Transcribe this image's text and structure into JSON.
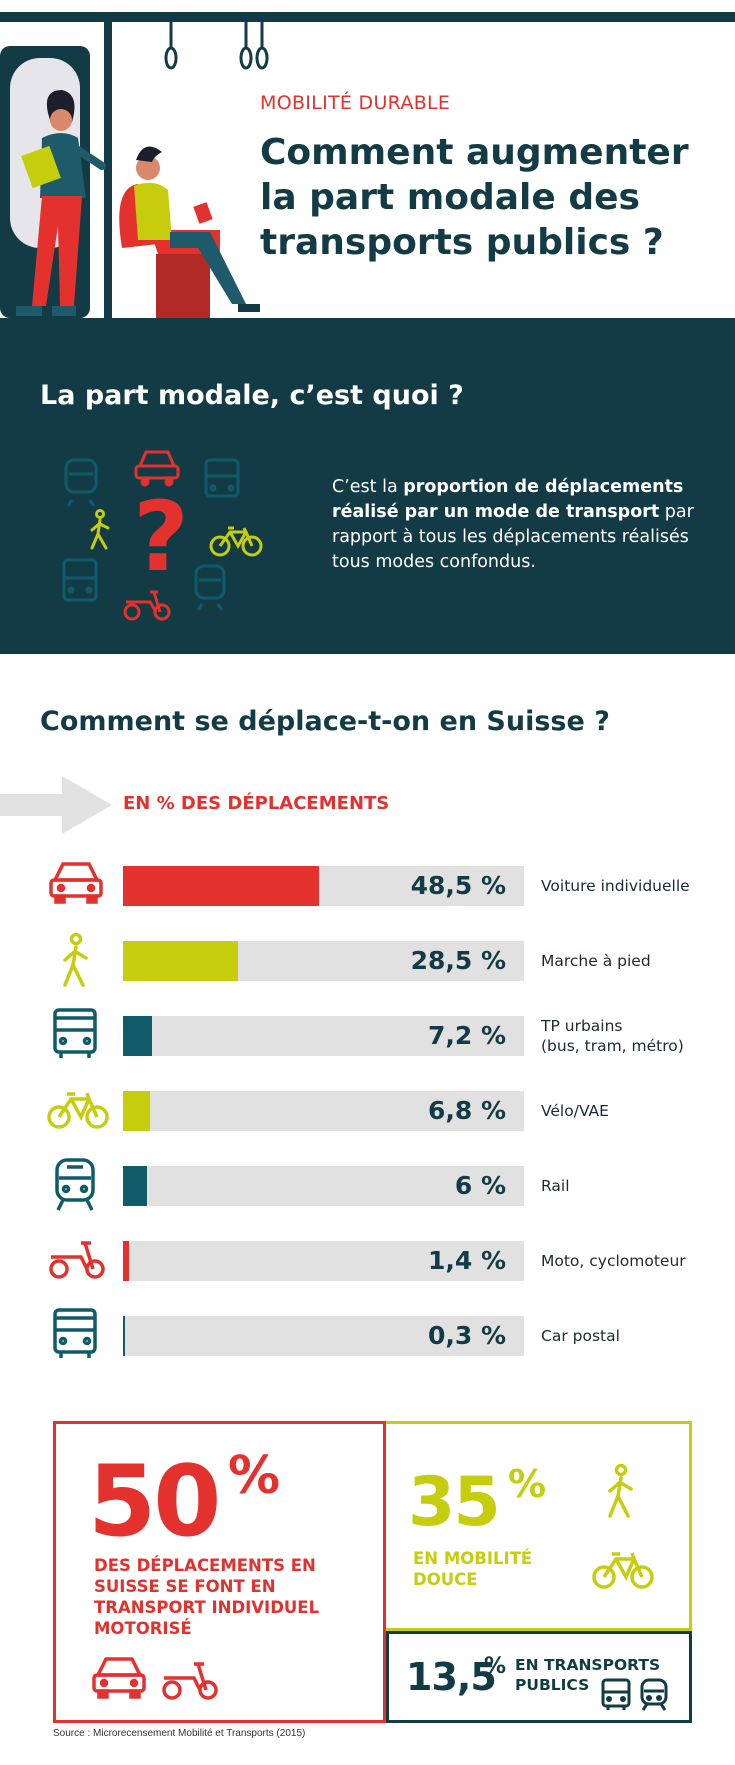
{
  "header": {
    "kicker": "MOBILITÉ DURABLE",
    "title": "Comment augmenter la part modale des transports publics ?"
  },
  "definition": {
    "heading": "La part modale, c’est quoi ?",
    "text_1": "C’est la ",
    "text_bold": "proportion de déplacements réalisé par un mode de transport",
    "text_2": " par rapport à tous les déplacements réalisés tous modes confondus."
  },
  "section2": {
    "heading": "Comment se déplace-t-on en Suisse ?"
  },
  "chart_data": {
    "type": "bar",
    "title": "EN % DES DÉPLACEMENTS",
    "xlim": [
      0,
      100
    ],
    "categories": [
      "Voiture individuelle",
      "Marche à pied",
      "TP urbains (bus, tram, métro)",
      "Vélo/VAE",
      "Rail",
      "Moto, cyclomoteur",
      "Car postal"
    ],
    "values": [
      48.5,
      28.5,
      7.2,
      6.8,
      6,
      1.4,
      0.3
    ],
    "value_labels": [
      "48,5 %",
      "28,5 %",
      "7,2 %",
      "6,8 %",
      "6 %",
      "1,4 %",
      "0,3 %"
    ],
    "label_lines": [
      [
        "Voiture individuelle"
      ],
      [
        "Marche à pied"
      ],
      [
        "TP urbains",
        "(bus, tram, métro)"
      ],
      [
        "Vélo/VAE"
      ],
      [
        "Rail"
      ],
      [
        "Moto, cyclomoteur"
      ],
      [
        "Car postal"
      ]
    ],
    "colors": [
      "#e3312e",
      "#c5cd0d",
      "#0f5b6a",
      "#c5cd0d",
      "#0f5b6a",
      "#e3312e",
      "#0f5b6a"
    ],
    "icons": [
      "car-icon",
      "pedestrian-icon",
      "bus-icon",
      "bicycle-icon",
      "train-icon",
      "scooter-icon",
      "bus-icon"
    ]
  },
  "summary": {
    "motorized_value": "50",
    "motorized_pct": "%",
    "motorized_text": "DES DÉPLACEMENTS EN SUISSE SE FONT EN TRANSPORT INDIVIDUEL MOTORISÉ",
    "soft_value": "35",
    "soft_pct": "%",
    "soft_text": "EN MOBILITÉ DOUCE",
    "public_value": "13,5",
    "public_pct": "%",
    "public_text": "EN TRANSPORTS PUBLICS"
  },
  "source": "Source : Microrecensement Mobilité et Transports (2015)",
  "colors": {
    "red": "#e3312e",
    "yellow": "#c5cd0d",
    "teal": "#133b45",
    "teal_bar": "#0f5b6a",
    "track": "#e2e1e2"
  }
}
